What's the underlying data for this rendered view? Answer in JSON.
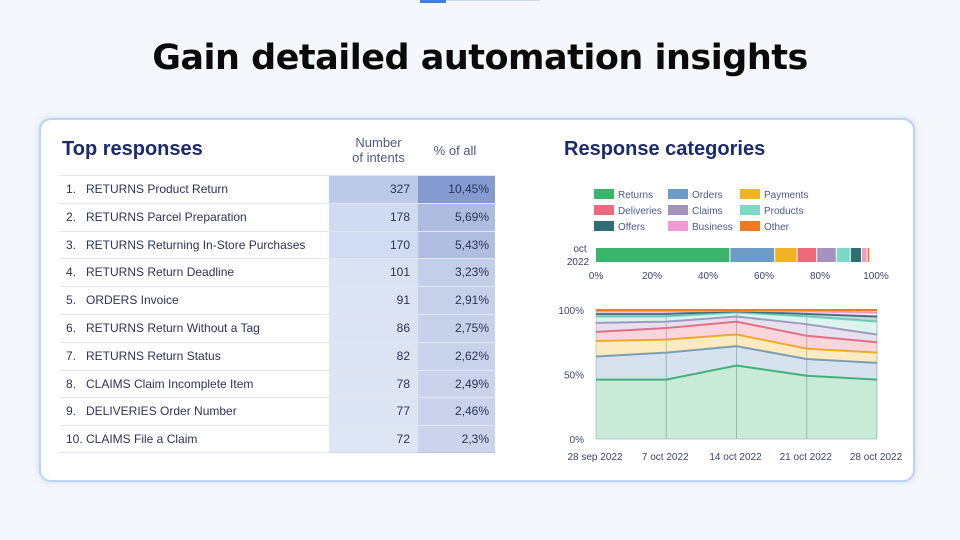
{
  "headline": "Gain detailed automation insights",
  "top_responses": {
    "title": "Top responses",
    "col_intents": [
      "Number",
      "of intents"
    ],
    "col_pct": "% of all",
    "rows": [
      {
        "idx": "1.",
        "label": "RETURNS Product Return",
        "count": "327",
        "pct": "10,45%",
        "pct_value": 10.45
      },
      {
        "idx": "2.",
        "label": "RETURNS Parcel Preparation",
        "count": "178",
        "pct": "5,69%",
        "pct_value": 5.69
      },
      {
        "idx": "3.",
        "label": "RETURNS Returning In-Store Purchases",
        "count": "170",
        "pct": "5,43%",
        "pct_value": 5.43
      },
      {
        "idx": "4.",
        "label": "RETURNS Return Deadline",
        "count": "101",
        "pct": "3,23%",
        "pct_value": 3.23
      },
      {
        "idx": "5.",
        "label": "ORDERS Invoice",
        "count": "91",
        "pct": "2,91%",
        "pct_value": 2.91
      },
      {
        "idx": "6.",
        "label": "RETURNS Return Without a Tag",
        "count": "86",
        "pct": "2,75%",
        "pct_value": 2.75
      },
      {
        "idx": "7.",
        "label": "RETURNS Return Status",
        "count": "82",
        "pct": "2,62%",
        "pct_value": 2.62
      },
      {
        "idx": "8.",
        "label": "CLAIMS Claim Incomplete Item",
        "count": "78",
        "pct": "2,49%",
        "pct_value": 2.49
      },
      {
        "idx": "9.",
        "label": "DELIVERIES Order Number",
        "count": "77",
        "pct": "2,46%",
        "pct_value": 2.46
      },
      {
        "idx": "10.",
        "label": "CLAIMS File a Claim",
        "count": "72",
        "pct": "2,3%",
        "pct_value": 2.3
      }
    ]
  },
  "response_categories": {
    "title": "Response categories",
    "legend": [
      {
        "name": "Returns",
        "color": "#3cb56c"
      },
      {
        "name": "Orders",
        "color": "#6c9bc6"
      },
      {
        "name": "Payments",
        "color": "#f0b323"
      },
      {
        "name": "Deliveries",
        "color": "#ec6a7c"
      },
      {
        "name": "Claims",
        "color": "#a592be"
      },
      {
        "name": "Products",
        "color": "#7dd8c6"
      },
      {
        "name": "Offers",
        "color": "#2e6f73"
      },
      {
        "name": "Business",
        "color": "#f19ad2"
      },
      {
        "name": "Other",
        "color": "#f07a22"
      }
    ]
  },
  "chart_data": [
    {
      "type": "bar",
      "orientation": "horizontal",
      "stacked": true,
      "categories": [
        "oct 2022"
      ],
      "series": [
        {
          "name": "Returns",
          "values": [
            48
          ]
        },
        {
          "name": "Orders",
          "values": [
            16
          ]
        },
        {
          "name": "Payments",
          "values": [
            8
          ]
        },
        {
          "name": "Deliveries",
          "values": [
            7
          ]
        },
        {
          "name": "Claims",
          "values": [
            7
          ]
        },
        {
          "name": "Products",
          "values": [
            5
          ]
        },
        {
          "name": "Offers",
          "values": [
            4
          ]
        },
        {
          "name": "Business",
          "values": [
            2
          ]
        },
        {
          "name": "Other",
          "values": [
            1
          ]
        }
      ],
      "xticks": [
        "0%",
        "20%",
        "40%",
        "60%",
        "80%",
        "100%"
      ],
      "xlim": [
        0,
        100
      ]
    },
    {
      "type": "area",
      "stacked": true,
      "x": [
        "28 sep 2022",
        "7 oct 2022",
        "14 oct 2022",
        "21 oct 2022",
        "28 oct 2022"
      ],
      "yticks": [
        "0%",
        "50%",
        "100%"
      ],
      "ylim": [
        0,
        100
      ],
      "series": [
        {
          "name": "Returns",
          "values": [
            46,
            46,
            57,
            49,
            46
          ]
        },
        {
          "name": "Orders",
          "values": [
            18,
            21,
            15,
            13,
            13
          ]
        },
        {
          "name": "Payments",
          "values": [
            12,
            10,
            9,
            8,
            8
          ]
        },
        {
          "name": "Deliveries",
          "values": [
            7,
            9,
            10,
            10,
            8
          ]
        },
        {
          "name": "Claims",
          "values": [
            7,
            5,
            4,
            9,
            6
          ]
        },
        {
          "name": "Products",
          "values": [
            5,
            4,
            3,
            6,
            10
          ]
        },
        {
          "name": "Offers",
          "values": [
            2,
            2,
            1,
            2,
            4
          ]
        },
        {
          "name": "Business",
          "values": [
            2,
            2,
            0.5,
            2,
            3
          ]
        },
        {
          "name": "Other",
          "values": [
            1,
            1,
            0.5,
            1,
            2
          ]
        }
      ]
    }
  ]
}
